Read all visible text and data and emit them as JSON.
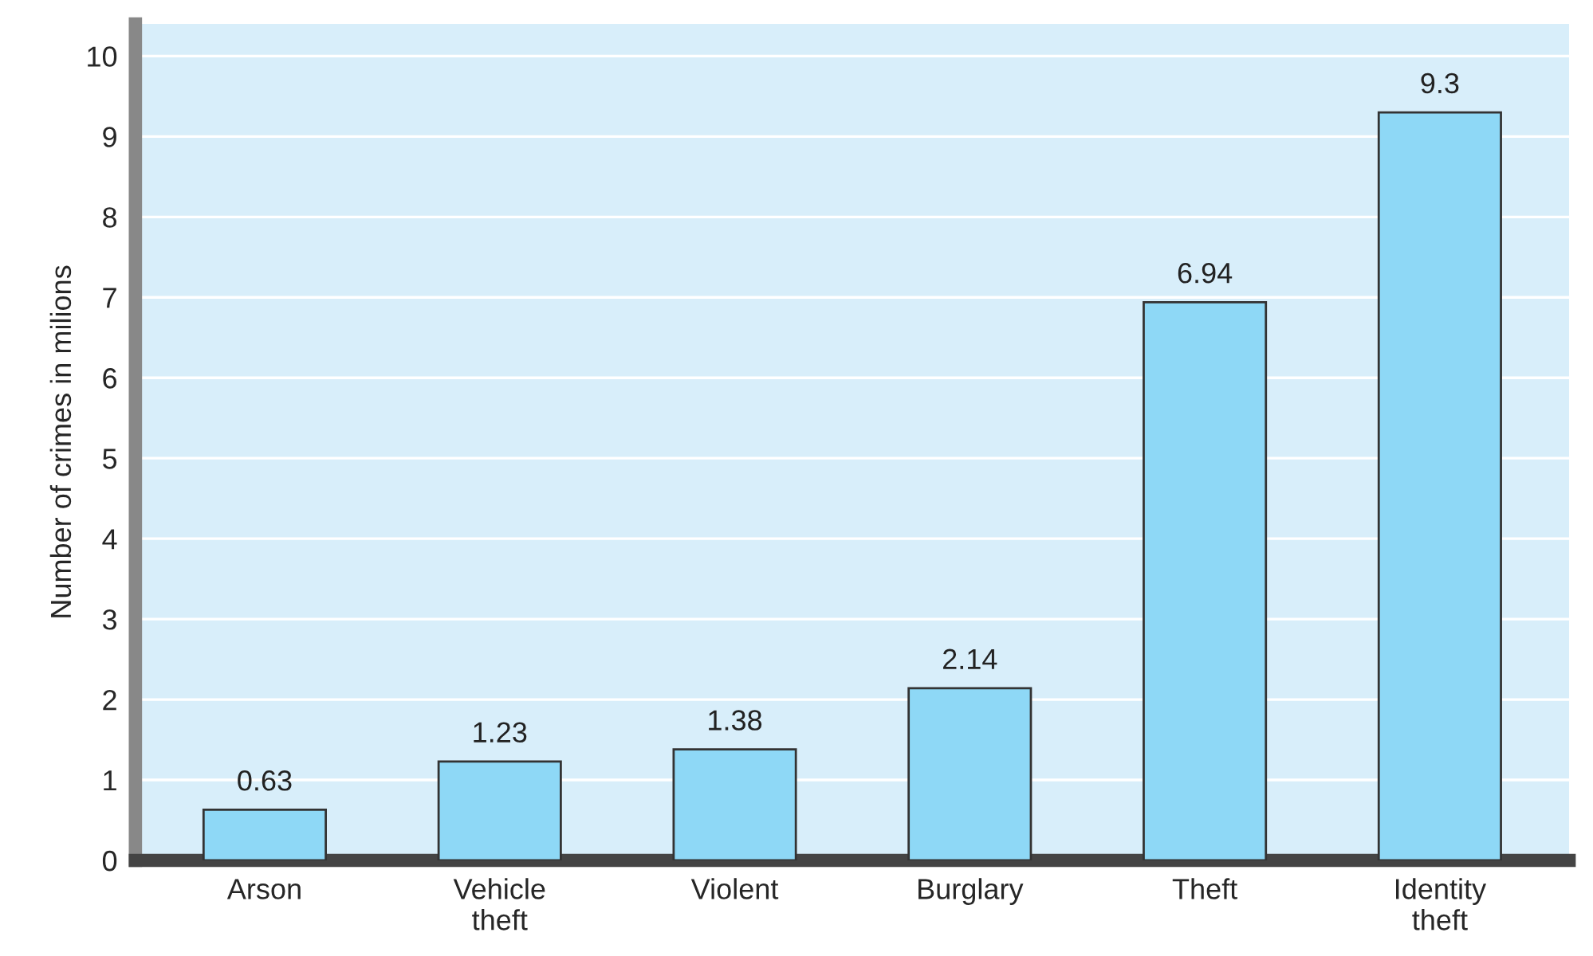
{
  "chart_data": {
    "type": "bar",
    "ylabel": "Number of crimes in milions",
    "categories": [
      "Arson",
      "Vehicle\ntheft",
      "Violent",
      "Burglary",
      "Theft",
      "Identity\ntheft"
    ],
    "values": [
      0.63,
      1.23,
      1.38,
      2.14,
      6.94,
      9.3
    ],
    "color": "#8ed8f6",
    "ylim": [
      0,
      10.4
    ],
    "yticks": [
      0,
      1,
      2,
      3,
      4,
      5,
      6,
      7,
      8,
      9,
      10
    ],
    "grid": "y",
    "data_labels": true
  }
}
